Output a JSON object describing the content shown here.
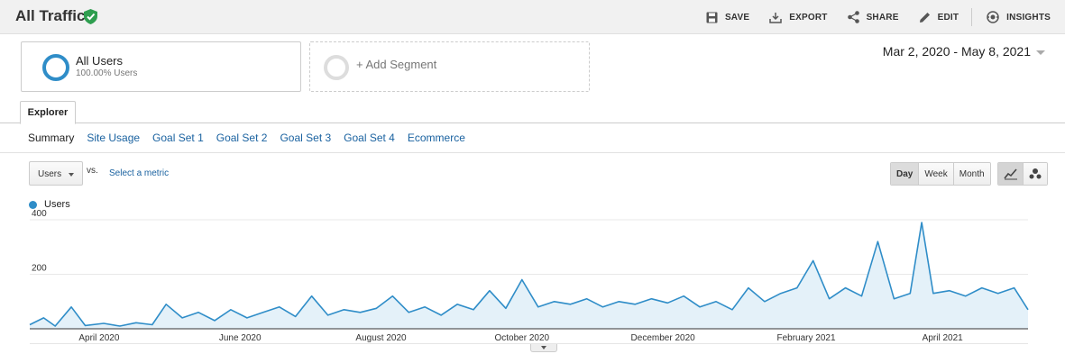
{
  "header": {
    "title": "All Traffic",
    "toolbar": [
      {
        "label": "SAVE",
        "icon": "save-icon"
      },
      {
        "label": "EXPORT",
        "icon": "export-icon"
      },
      {
        "label": "SHARE",
        "icon": "share-icon"
      },
      {
        "label": "EDIT",
        "icon": "edit-icon"
      },
      {
        "label": "INSIGHTS",
        "icon": "insights-icon"
      }
    ]
  },
  "segments": {
    "all_users": {
      "name": "All Users",
      "sub": "100.00% Users"
    },
    "add_label": "+ Add Segment"
  },
  "date_range": "Mar 2, 2020 - May 8, 2021",
  "tabs": {
    "explorer": "Explorer",
    "subtabs": [
      "Summary",
      "Site Usage",
      "Goal Set 1",
      "Goal Set 2",
      "Goal Set 3",
      "Goal Set 4",
      "Ecommerce"
    ]
  },
  "controls": {
    "metric": "Users",
    "vs": "vs.",
    "select_metric": "Select a metric",
    "periods": [
      "Day",
      "Week",
      "Month"
    ],
    "active_period": "Day"
  },
  "colors": {
    "series": "#2f8dc8",
    "area": "#e4f1f9"
  },
  "chart_data": {
    "type": "area",
    "title": "",
    "xlabel": "",
    "ylabel": "",
    "x_start": "2020-03-02",
    "x_end": "2021-05-08",
    "ylim": [
      0,
      400
    ],
    "yticks": [
      200,
      400
    ],
    "xticks": [
      {
        "label": "April 2020",
        "date": "2020-04-01"
      },
      {
        "label": "June 2020",
        "date": "2020-06-01"
      },
      {
        "label": "August 2020",
        "date": "2020-08-01"
      },
      {
        "label": "October 2020",
        "date": "2020-10-01"
      },
      {
        "label": "December 2020",
        "date": "2020-12-01"
      },
      {
        "label": "February 2021",
        "date": "2021-02-01"
      },
      {
        "label": "April 2021",
        "date": "2021-04-01"
      }
    ],
    "series": [
      {
        "name": "Users",
        "points": [
          [
            "2020-03-02",
            15
          ],
          [
            "2020-03-08",
            40
          ],
          [
            "2020-03-13",
            10
          ],
          [
            "2020-03-20",
            80
          ],
          [
            "2020-03-26",
            12
          ],
          [
            "2020-04-03",
            20
          ],
          [
            "2020-04-10",
            10
          ],
          [
            "2020-04-17",
            22
          ],
          [
            "2020-04-24",
            15
          ],
          [
            "2020-04-30",
            90
          ],
          [
            "2020-05-07",
            40
          ],
          [
            "2020-05-14",
            60
          ],
          [
            "2020-05-21",
            30
          ],
          [
            "2020-05-28",
            70
          ],
          [
            "2020-06-04",
            40
          ],
          [
            "2020-06-11",
            60
          ],
          [
            "2020-06-18",
            80
          ],
          [
            "2020-06-25",
            45
          ],
          [
            "2020-07-02",
            120
          ],
          [
            "2020-07-09",
            50
          ],
          [
            "2020-07-16",
            70
          ],
          [
            "2020-07-23",
            60
          ],
          [
            "2020-07-30",
            75
          ],
          [
            "2020-08-06",
            120
          ],
          [
            "2020-08-13",
            60
          ],
          [
            "2020-08-20",
            80
          ],
          [
            "2020-08-27",
            50
          ],
          [
            "2020-09-03",
            90
          ],
          [
            "2020-09-10",
            70
          ],
          [
            "2020-09-17",
            140
          ],
          [
            "2020-09-24",
            75
          ],
          [
            "2020-10-01",
            180
          ],
          [
            "2020-10-08",
            80
          ],
          [
            "2020-10-15",
            100
          ],
          [
            "2020-10-22",
            90
          ],
          [
            "2020-10-29",
            110
          ],
          [
            "2020-11-05",
            80
          ],
          [
            "2020-11-12",
            100
          ],
          [
            "2020-11-19",
            90
          ],
          [
            "2020-11-26",
            110
          ],
          [
            "2020-12-03",
            95
          ],
          [
            "2020-12-10",
            120
          ],
          [
            "2020-12-17",
            80
          ],
          [
            "2020-12-24",
            100
          ],
          [
            "2020-12-31",
            70
          ],
          [
            "2021-01-07",
            150
          ],
          [
            "2021-01-14",
            100
          ],
          [
            "2021-01-21",
            130
          ],
          [
            "2021-01-28",
            150
          ],
          [
            "2021-02-04",
            250
          ],
          [
            "2021-02-11",
            110
          ],
          [
            "2021-02-18",
            150
          ],
          [
            "2021-02-25",
            120
          ],
          [
            "2021-03-04",
            320
          ],
          [
            "2021-03-11",
            110
          ],
          [
            "2021-03-18",
            130
          ],
          [
            "2021-03-23",
            390
          ],
          [
            "2021-03-28",
            130
          ],
          [
            "2021-04-04",
            140
          ],
          [
            "2021-04-11",
            120
          ],
          [
            "2021-04-18",
            150
          ],
          [
            "2021-04-25",
            130
          ],
          [
            "2021-05-02",
            150
          ],
          [
            "2021-05-08",
            70
          ]
        ]
      }
    ],
    "grid": true,
    "legend": "top-left"
  }
}
